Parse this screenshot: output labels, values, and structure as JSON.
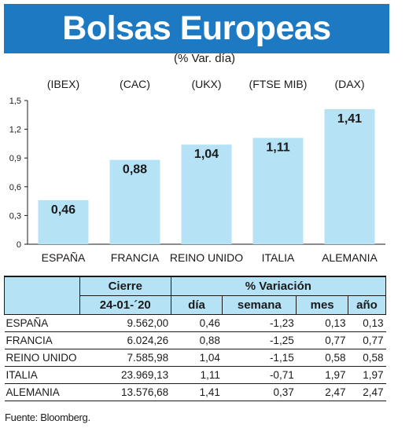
{
  "title": "Bolsas Europeas",
  "subtitle": "(% Var. día)",
  "chart_data": {
    "type": "bar",
    "title": "Bolsas Europeas",
    "subtitle": "(% Var. día)",
    "categories": [
      "ESPAÑA",
      "FRANCIA",
      "REINO UNIDO",
      "ITALIA",
      "ALEMANIA"
    ],
    "index_labels": [
      "(IBEX)",
      "(CAC)",
      "(UKX)",
      "(FTSE MIB)",
      "(DAX)"
    ],
    "values": [
      0.46,
      0.88,
      1.04,
      1.11,
      1.41
    ],
    "value_labels": [
      "0,46",
      "0,88",
      "1,04",
      "1,11",
      "1,41"
    ],
    "ylim": [
      0,
      1.5
    ],
    "yticks": [
      0,
      0.3,
      0.6,
      0.9,
      1.2,
      1.5
    ],
    "ytick_labels": [
      "0",
      "0,3",
      "0,6",
      "0,9",
      "1,2",
      "1,5"
    ],
    "bar_color": "#b6e2f6",
    "grid": false
  },
  "table": {
    "group_headers": [
      "Cierre",
      "% Variación"
    ],
    "date_header": "24-01-´20",
    "col_headers": [
      "día",
      "semana",
      "mes",
      "año"
    ],
    "rows": [
      {
        "name": "ESPAÑA",
        "cierre": "9.562,00",
        "dia": "0,46",
        "semana": "-1,23",
        "mes": "0,13",
        "anio": "0,13"
      },
      {
        "name": "FRANCIA",
        "cierre": "6.024,26",
        "dia": "0,88",
        "semana": "-1,25",
        "mes": "0,77",
        "anio": "0,77"
      },
      {
        "name": "REINO UNIDO",
        "cierre": "7.585,98",
        "dia": "1,04",
        "semana": "-1,15",
        "mes": "0,58",
        "anio": "0,58"
      },
      {
        "name": "ITALIA",
        "cierre": "23.969,13",
        "dia": "1,11",
        "semana": "-0,71",
        "mes": "1,97",
        "anio": "1,97"
      },
      {
        "name": "ALEMANIA",
        "cierre": "13.576,68",
        "dia": "1,41",
        "semana": "0,37",
        "mes": "2,47",
        "anio": "2,47"
      }
    ]
  },
  "source": "Fuente: Bloomberg.",
  "colors": {
    "title_bg": "#1d7ac2",
    "bar": "#b6e2f6",
    "header_bg": "#b6e2f6"
  }
}
